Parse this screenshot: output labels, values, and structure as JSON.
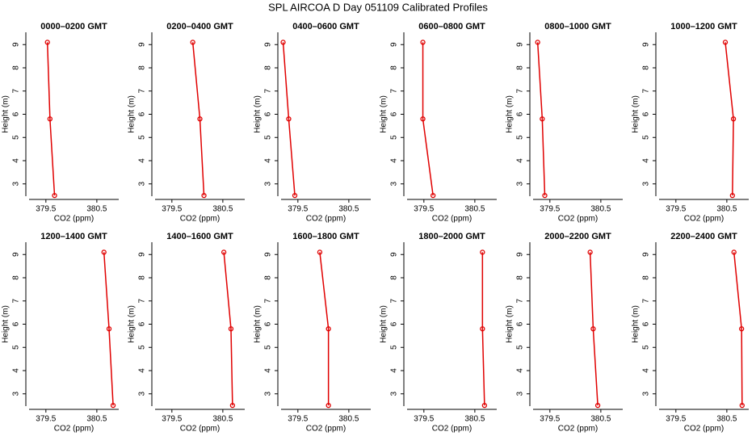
{
  "title": "SPL AIRCOA D  Day 051109  Calibrated Profiles",
  "chart_data": [
    {
      "type": "line",
      "title": "0000–0200 GMT",
      "xlabel": "CO2 (ppm)",
      "ylabel": "Height (m)",
      "color": "#e00000",
      "x": [
        379.53,
        379.58,
        379.67
      ],
      "y": [
        9.1,
        5.8,
        2.5
      ],
      "xlim": [
        379.17,
        380.93
      ],
      "ylim": [
        2.47,
        9.53
      ],
      "xticks": [
        379.5,
        380.5
      ],
      "yticks": [
        3,
        4,
        5,
        6,
        7,
        8,
        9
      ]
    },
    {
      "type": "line",
      "title": "0200–0400 GMT",
      "xlabel": "CO2 (ppm)",
      "ylabel": "Height (m)",
      "color": "#e00000",
      "x": [
        379.91,
        380.05,
        380.13
      ],
      "y": [
        9.1,
        5.8,
        2.5
      ],
      "xlim": [
        379.17,
        380.93
      ],
      "ylim": [
        2.47,
        9.53
      ],
      "xticks": [
        379.5,
        380.5
      ],
      "yticks": [
        3,
        4,
        5,
        6,
        7,
        8,
        9
      ]
    },
    {
      "type": "line",
      "title": "0400–0600 GMT",
      "xlabel": "CO2 (ppm)",
      "ylabel": "Height (m)",
      "color": "#e00000",
      "x": [
        379.21,
        379.32,
        379.44
      ],
      "y": [
        9.1,
        5.8,
        2.5
      ],
      "xlim": [
        379.17,
        380.93
      ],
      "ylim": [
        2.47,
        9.53
      ],
      "xticks": [
        379.5,
        380.5
      ],
      "yticks": [
        3,
        4,
        5,
        6,
        7,
        8,
        9
      ]
    },
    {
      "type": "line",
      "title": "0600–0800 GMT",
      "xlabel": "CO2 (ppm)",
      "ylabel": "Height (m)",
      "color": "#e00000",
      "x": [
        379.48,
        379.48,
        379.68
      ],
      "y": [
        9.1,
        5.8,
        2.5
      ],
      "xlim": [
        379.17,
        380.93
      ],
      "ylim": [
        2.47,
        9.53
      ],
      "xticks": [
        379.5,
        380.5
      ],
      "yticks": [
        3,
        4,
        5,
        6,
        7,
        8,
        9
      ]
    },
    {
      "type": "line",
      "title": "0800–1000 GMT",
      "xlabel": "CO2 (ppm)",
      "ylabel": "Height (m)",
      "color": "#e00000",
      "x": [
        379.26,
        379.35,
        379.4
      ],
      "y": [
        9.1,
        5.8,
        2.5
      ],
      "xlim": [
        379.17,
        380.93
      ],
      "ylim": [
        2.47,
        9.53
      ],
      "xticks": [
        379.5,
        380.5
      ],
      "yticks": [
        3,
        4,
        5,
        6,
        7,
        8,
        9
      ]
    },
    {
      "type": "line",
      "title": "1000–1200 GMT",
      "xlabel": "CO2 (ppm)",
      "ylabel": "Height (m)",
      "color": "#e00000",
      "x": [
        380.47,
        380.63,
        380.61
      ],
      "y": [
        9.1,
        5.8,
        2.5
      ],
      "xlim": [
        379.17,
        380.93
      ],
      "ylim": [
        2.47,
        9.53
      ],
      "xticks": [
        379.5,
        380.5
      ],
      "yticks": [
        3,
        4,
        5,
        6,
        7,
        8,
        9
      ]
    },
    {
      "type": "line",
      "title": "1200–1400 GMT",
      "xlabel": "CO2 (ppm)",
      "ylabel": "Height (m)",
      "color": "#e00000",
      "x": [
        380.64,
        380.74,
        380.82
      ],
      "y": [
        9.1,
        5.8,
        2.5
      ],
      "xlim": [
        379.17,
        380.93
      ],
      "ylim": [
        2.47,
        9.53
      ],
      "xticks": [
        379.5,
        380.5
      ],
      "yticks": [
        3,
        4,
        5,
        6,
        7,
        8,
        9
      ]
    },
    {
      "type": "line",
      "title": "1400–1600 GMT",
      "xlabel": "CO2 (ppm)",
      "ylabel": "Height (m)",
      "color": "#e00000",
      "x": [
        380.52,
        380.66,
        380.69
      ],
      "y": [
        9.1,
        5.8,
        2.5
      ],
      "xlim": [
        379.17,
        380.93
      ],
      "ylim": [
        2.47,
        9.53
      ],
      "xticks": [
        379.5,
        380.5
      ],
      "yticks": [
        3,
        4,
        5,
        6,
        7,
        8,
        9
      ]
    },
    {
      "type": "line",
      "title": "1600–1800 GMT",
      "xlabel": "CO2 (ppm)",
      "ylabel": "Height (m)",
      "color": "#e00000",
      "x": [
        379.93,
        380.1,
        380.1
      ],
      "y": [
        9.1,
        5.8,
        2.5
      ],
      "xlim": [
        379.17,
        380.93
      ],
      "ylim": [
        2.47,
        9.53
      ],
      "xticks": [
        379.5,
        380.5
      ],
      "yticks": [
        3,
        4,
        5,
        6,
        7,
        8,
        9
      ]
    },
    {
      "type": "line",
      "title": "1800–2000 GMT",
      "xlabel": "CO2 (ppm)",
      "ylabel": "Height (m)",
      "color": "#e00000",
      "x": [
        380.65,
        380.65,
        380.69
      ],
      "y": [
        9.1,
        5.8,
        2.5
      ],
      "xlim": [
        379.17,
        380.93
      ],
      "ylim": [
        2.47,
        9.53
      ],
      "xticks": [
        379.5,
        380.5
      ],
      "yticks": [
        3,
        4,
        5,
        6,
        7,
        8,
        9
      ]
    },
    {
      "type": "line",
      "title": "2000–2200 GMT",
      "xlabel": "CO2 (ppm)",
      "ylabel": "Height (m)",
      "color": "#e00000",
      "x": [
        380.29,
        380.35,
        380.44
      ],
      "y": [
        9.1,
        5.8,
        2.5
      ],
      "xlim": [
        379.17,
        380.93
      ],
      "ylim": [
        2.47,
        9.53
      ],
      "xticks": [
        379.5,
        380.5
      ],
      "yticks": [
        3,
        4,
        5,
        6,
        7,
        8,
        9
      ]
    },
    {
      "type": "line",
      "title": "2200–2400 GMT",
      "xlabel": "CO2 (ppm)",
      "ylabel": "Height (m)",
      "color": "#e00000",
      "x": [
        380.64,
        380.79,
        380.8
      ],
      "y": [
        9.1,
        5.8,
        2.5
      ],
      "xlim": [
        379.17,
        380.93
      ],
      "ylim": [
        2.47,
        9.53
      ],
      "xticks": [
        379.5,
        380.5
      ],
      "yticks": [
        3,
        4,
        5,
        6,
        7,
        8,
        9
      ]
    }
  ]
}
